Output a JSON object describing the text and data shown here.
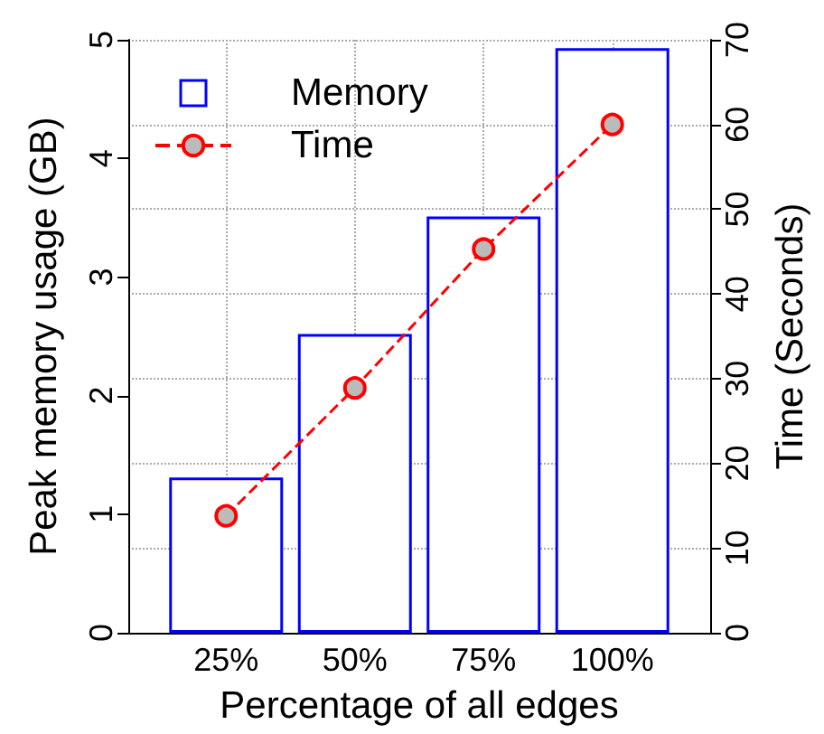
{
  "chart_data": {
    "type": "bar",
    "categories": [
      "25%",
      "50%",
      "75%",
      "100%"
    ],
    "series": [
      {
        "name": "Memory",
        "color": "#0000ff",
        "values": [
          1.31,
          2.52,
          3.51,
          4.93
        ]
      },
      {
        "name": "Time",
        "type": "line",
        "axis": "y2",
        "color": "#ff0000",
        "values": [
          13.8,
          28.9,
          45.3,
          60
        ]
      }
    ],
    "xlabel": "Percentage of all edges",
    "ylabel": "Peak memory usage (GB)",
    "y2label": "Time (Seconds)",
    "ylim": [
      0,
      5
    ],
    "yticks": [
      0,
      1,
      2,
      3,
      4,
      5
    ],
    "y2lim": [
      0,
      70
    ],
    "y2ticks": [
      0,
      10,
      20,
      30,
      40,
      50,
      60,
      70
    ],
    "grid": true,
    "legend": "top left",
    "marker": "circle",
    "line_style": "dashed"
  }
}
